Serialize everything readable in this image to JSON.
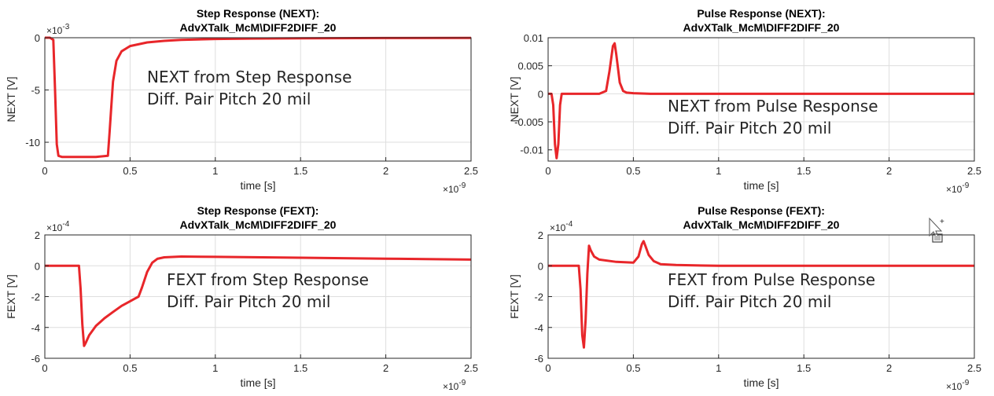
{
  "chart_data": [
    {
      "type": "line",
      "title": "Step Response (NEXT):",
      "subtitle": "AdvXTalk_McM\\DIFF2DIFF_20",
      "xlabel": "time [s]",
      "ylabel": "NEXT [V]",
      "x_multiplier": "×10",
      "x_exponent": "-9",
      "y_multiplier": "×10",
      "y_exponent": "-3",
      "xlim": [
        0,
        2.5
      ],
      "ylim": [
        -11.8,
        0
      ],
      "xticks": [
        "0",
        "0.5",
        "1",
        "1.5",
        "2",
        "2.5"
      ],
      "xtick_values": [
        0,
        0.5,
        1,
        1.5,
        2,
        2.5
      ],
      "yticks": [
        "0",
        "-5",
        "-10"
      ],
      "ytick_values": [
        0,
        -5,
        -10
      ],
      "grid": true,
      "line_color": "#e8262a",
      "annotation": [
        "NEXT from Step Response",
        "Diff. Pair Pitch 20 mil"
      ],
      "series": [
        {
          "x": [
            0,
            0.03,
            0.05,
            0.06,
            0.07,
            0.08,
            0.1,
            0.2,
            0.3,
            0.37,
            0.38,
            0.39,
            0.4,
            0.42,
            0.45,
            0.5,
            0.6,
            0.7,
            0.8,
            1.0,
            1.2,
            1.5,
            2.0,
            2.5
          ],
          "y": [
            0,
            0,
            -0.2,
            -5.0,
            -10.2,
            -11.3,
            -11.4,
            -11.4,
            -11.4,
            -11.3,
            -9.0,
            -6.5,
            -4.2,
            -2.2,
            -1.3,
            -0.8,
            -0.45,
            -0.3,
            -0.2,
            -0.12,
            -0.08,
            -0.05,
            -0.03,
            -0.02
          ]
        }
      ]
    },
    {
      "type": "line",
      "title": "Pulse Response (NEXT):",
      "subtitle": "AdvXTalk_McM\\DIFF2DIFF_20",
      "xlabel": "time [s]",
      "ylabel": "NEXT [V]",
      "x_multiplier": "×10",
      "x_exponent": "-9",
      "xlim": [
        0,
        2.5
      ],
      "ylim": [
        -0.012,
        0.01
      ],
      "xticks": [
        "0",
        "0.5",
        "1",
        "1.5",
        "2",
        "2.5"
      ],
      "xtick_values": [
        0,
        0.5,
        1,
        1.5,
        2,
        2.5
      ],
      "yticks": [
        "0.01",
        "0.005",
        "0",
        "-0.005",
        "-0.01"
      ],
      "ytick_values": [
        0.01,
        0.005,
        0,
        -0.005,
        -0.01
      ],
      "grid": true,
      "line_color": "#e8262a",
      "annotation": [
        "NEXT from Pulse Response",
        "Diff. Pair Pitch 20 mil"
      ],
      "series": [
        {
          "x": [
            0,
            0.02,
            0.03,
            0.04,
            0.05,
            0.06,
            0.07,
            0.08,
            0.1,
            0.2,
            0.3,
            0.34,
            0.36,
            0.38,
            0.39,
            0.4,
            0.42,
            0.44,
            0.46,
            0.5,
            0.6,
            1.0,
            1.5,
            2.0,
            2.5
          ],
          "y": [
            0,
            0,
            -0.002,
            -0.009,
            -0.0115,
            -0.009,
            -0.002,
            0,
            0,
            0,
            0,
            0.0005,
            0.004,
            0.0085,
            0.009,
            0.007,
            0.002,
            0.0005,
            0.0002,
            0.0001,
            0,
            0,
            0,
            0,
            0
          ]
        }
      ]
    },
    {
      "type": "line",
      "title": "Step Response (FEXT):",
      "subtitle": "AdvXTalk_McM\\DIFF2DIFF_20",
      "xlabel": "time [s]",
      "ylabel": "FEXT [V]",
      "x_multiplier": "×10",
      "x_exponent": "-9",
      "y_multiplier": "×10",
      "y_exponent": "-4",
      "xlim": [
        0,
        2.5
      ],
      "ylim": [
        -6,
        2
      ],
      "xticks": [
        "0",
        "0.5",
        "1",
        "1.5",
        "2",
        "2.5"
      ],
      "xtick_values": [
        0,
        0.5,
        1,
        1.5,
        2,
        2.5
      ],
      "yticks": [
        "2",
        "0",
        "-2",
        "-4",
        "-6"
      ],
      "ytick_values": [
        2,
        0,
        -2,
        -4,
        -6
      ],
      "grid": true,
      "line_color": "#e8262a",
      "annotation": [
        "FEXT from Step Response",
        "Diff. Pair Pitch 20 mil"
      ],
      "series": [
        {
          "x": [
            0,
            0.2,
            0.21,
            0.22,
            0.23,
            0.24,
            0.26,
            0.3,
            0.35,
            0.4,
            0.45,
            0.5,
            0.55,
            0.57,
            0.6,
            0.63,
            0.66,
            0.7,
            0.8,
            1.0,
            1.5,
            2.0,
            2.5
          ],
          "y": [
            0,
            0,
            -1.5,
            -3.8,
            -5.2,
            -5.0,
            -4.5,
            -3.9,
            -3.4,
            -3.0,
            -2.6,
            -2.3,
            -2.0,
            -1.4,
            -0.4,
            0.2,
            0.45,
            0.55,
            0.6,
            0.58,
            0.52,
            0.46,
            0.4
          ]
        }
      ]
    },
    {
      "type": "line",
      "title": "Pulse Response (FEXT):",
      "subtitle": "AdvXTalk_McM\\DIFF2DIFF_20",
      "xlabel": "time [s]",
      "ylabel": "FEXT [V]",
      "x_multiplier": "×10",
      "x_exponent": "-9",
      "y_multiplier": "×10",
      "y_exponent": "-4",
      "xlim": [
        0,
        2.5
      ],
      "ylim": [
        -6,
        2
      ],
      "xticks": [
        "0",
        "0.5",
        "1",
        "1.5",
        "2",
        "2.5"
      ],
      "xtick_values": [
        0,
        0.5,
        1,
        1.5,
        2,
        2.5
      ],
      "yticks": [
        "2",
        "0",
        "-2",
        "-4",
        "-6"
      ],
      "ytick_values": [
        2,
        0,
        -2,
        -4,
        -6
      ],
      "grid": true,
      "line_color": "#e8262a",
      "annotation": [
        "FEXT from Pulse Response",
        "Diff. Pair Pitch 20 mil"
      ],
      "series": [
        {
          "x": [
            0,
            0.18,
            0.19,
            0.2,
            0.21,
            0.22,
            0.23,
            0.24,
            0.25,
            0.27,
            0.3,
            0.4,
            0.5,
            0.53,
            0.55,
            0.56,
            0.57,
            0.59,
            0.62,
            0.66,
            0.75,
            1.0,
            1.5,
            2.0,
            2.5
          ],
          "y": [
            0,
            0,
            -1.5,
            -4.5,
            -5.3,
            -3.5,
            -0.5,
            1.3,
            1.0,
            0.6,
            0.4,
            0.25,
            0.2,
            0.6,
            1.4,
            1.6,
            1.3,
            0.7,
            0.3,
            0.1,
            0.05,
            0,
            0,
            0,
            0
          ]
        }
      ]
    }
  ]
}
